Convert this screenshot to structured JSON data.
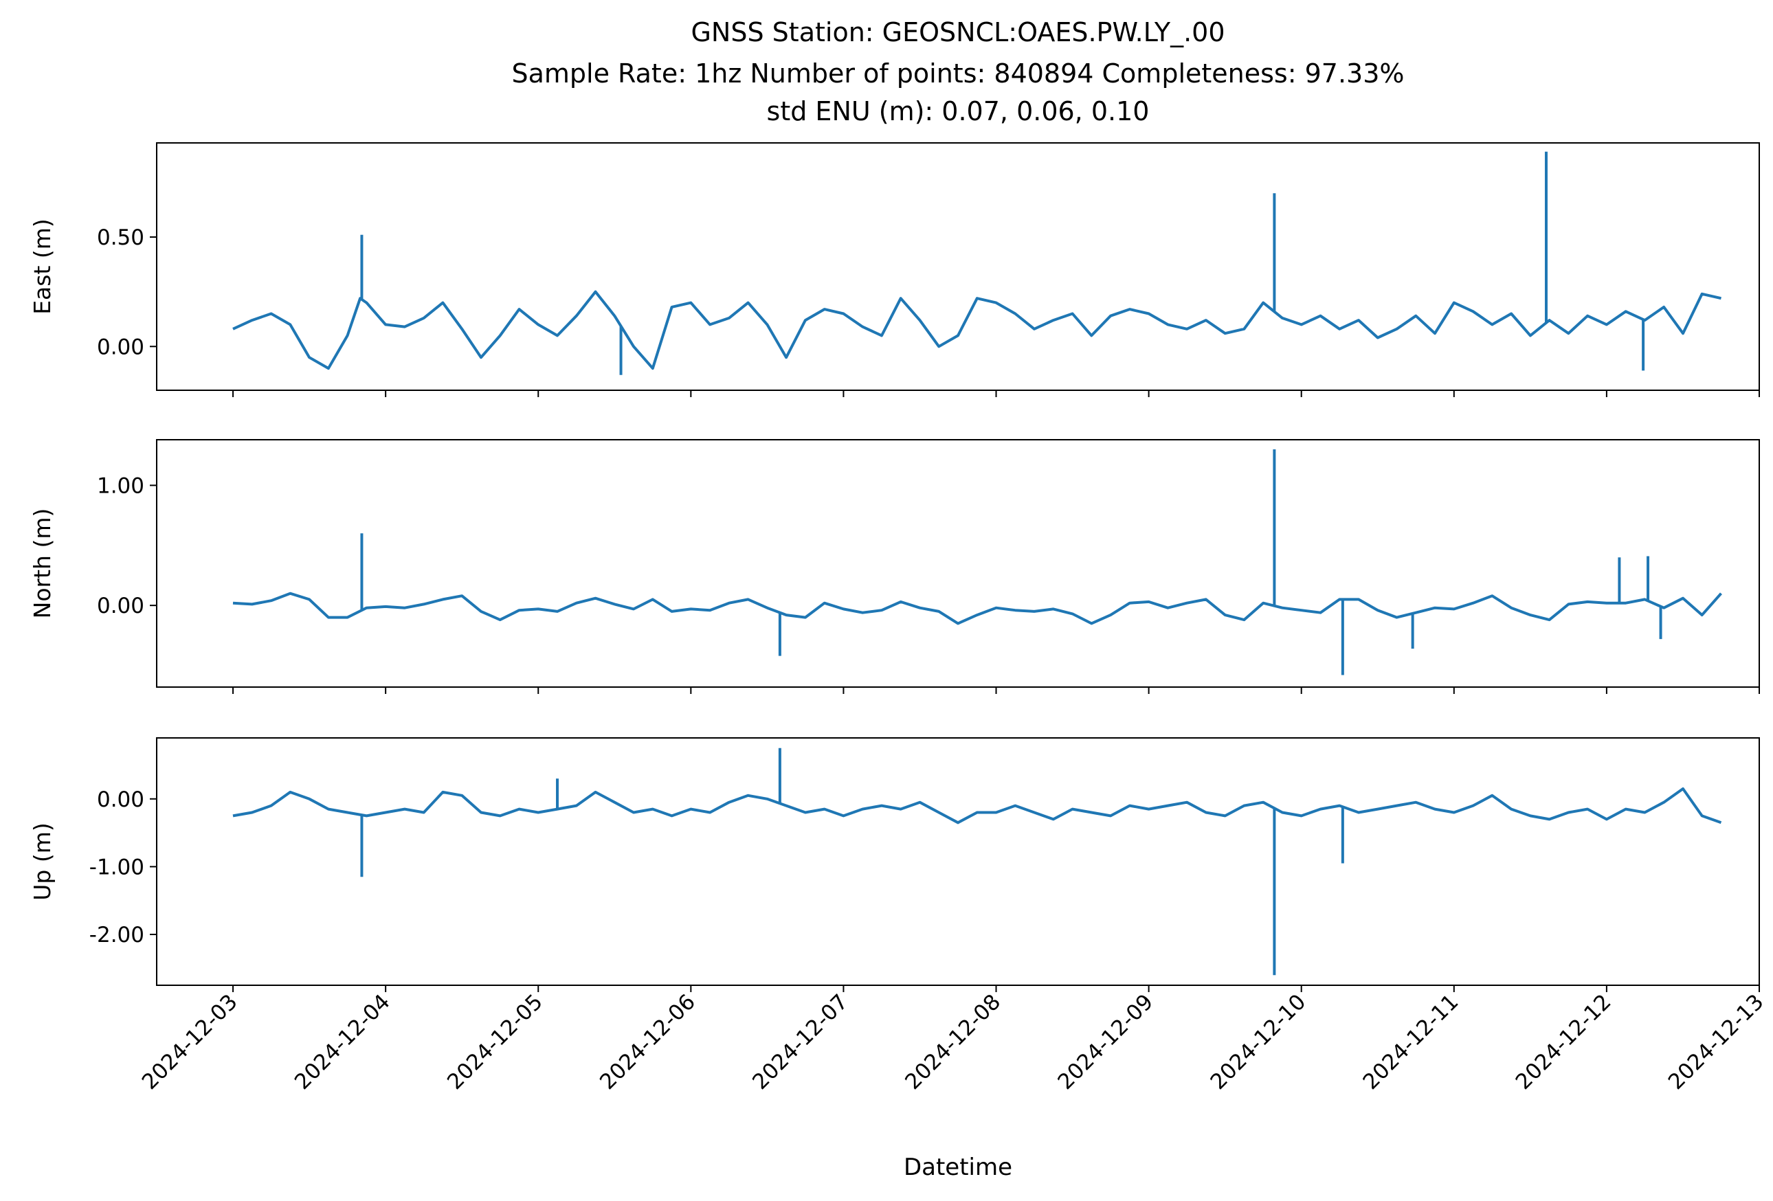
{
  "figure": {
    "title_lines": [
      "GNSS Station: GEOSNCL:OAES.PW.LY_.00",
      "Sample Rate: 1hz   Number of points: 840894    Completeness:  97.33%",
      "std ENU (m):  0.07, 0.06, 0.10"
    ],
    "xlabel": "Datetime",
    "line_color": "#1f77b4"
  },
  "chart_data": [
    {
      "type": "line",
      "ylabel": "East (m)",
      "ylim": [
        -0.2,
        0.93
      ],
      "yticks": [
        0.0,
        0.5
      ],
      "ytick_labels": [
        "0.00",
        "0.50"
      ],
      "xlim": [
        "2024-12-02T12:00",
        "2024-12-13T00:00"
      ],
      "grid": false,
      "series": [
        {
          "x": [
            "2024-12-03T00:00",
            "2024-12-03T03:00",
            "2024-12-03T06:00",
            "2024-12-03T09:00",
            "2024-12-03T12:00",
            "2024-12-03T15:00",
            "2024-12-03T18:00",
            "2024-12-03T20:00",
            "2024-12-03T21:00",
            "2024-12-04T00:00",
            "2024-12-04T03:00",
            "2024-12-04T06:00",
            "2024-12-04T09:00",
            "2024-12-04T12:00",
            "2024-12-04T15:00",
            "2024-12-04T18:00",
            "2024-12-04T21:00",
            "2024-12-05T00:00",
            "2024-12-05T03:00",
            "2024-12-05T06:00",
            "2024-12-05T09:00",
            "2024-12-05T12:00",
            "2024-12-05T15:00",
            "2024-12-05T18:00",
            "2024-12-05T21:00",
            "2024-12-06T00:00",
            "2024-12-06T03:00",
            "2024-12-06T06:00",
            "2024-12-06T09:00",
            "2024-12-06T12:00",
            "2024-12-06T15:00",
            "2024-12-06T18:00",
            "2024-12-06T21:00",
            "2024-12-07T00:00",
            "2024-12-07T03:00",
            "2024-12-07T06:00",
            "2024-12-07T09:00",
            "2024-12-07T12:00",
            "2024-12-07T15:00",
            "2024-12-07T18:00",
            "2024-12-07T21:00",
            "2024-12-08T00:00",
            "2024-12-08T03:00",
            "2024-12-08T06:00",
            "2024-12-08T09:00",
            "2024-12-08T12:00",
            "2024-12-08T15:00",
            "2024-12-08T18:00",
            "2024-12-08T21:00",
            "2024-12-09T00:00",
            "2024-12-09T03:00",
            "2024-12-09T06:00",
            "2024-12-09T09:00",
            "2024-12-09T12:00",
            "2024-12-09T15:00",
            "2024-12-09T18:00",
            "2024-12-09T21:00",
            "2024-12-10T00:00",
            "2024-12-10T03:00",
            "2024-12-10T06:00",
            "2024-12-10T09:00",
            "2024-12-10T12:00",
            "2024-12-10T15:00",
            "2024-12-10T18:00",
            "2024-12-10T21:00",
            "2024-12-11T00:00",
            "2024-12-11T03:00",
            "2024-12-11T06:00",
            "2024-12-11T09:00",
            "2024-12-11T12:00",
            "2024-12-11T15:00",
            "2024-12-11T18:00",
            "2024-12-11T21:00",
            "2024-12-12T00:00",
            "2024-12-12T03:00",
            "2024-12-12T06:00",
            "2024-12-12T09:00",
            "2024-12-12T12:00",
            "2024-12-12T15:00",
            "2024-12-12T18:00"
          ],
          "y": [
            0.08,
            0.12,
            0.15,
            0.1,
            -0.05,
            -0.1,
            0.05,
            0.22,
            0.2,
            0.1,
            0.09,
            0.13,
            0.2,
            0.08,
            -0.05,
            0.05,
            0.17,
            0.1,
            0.05,
            0.14,
            0.25,
            0.14,
            0.0,
            -0.1,
            0.18,
            0.2,
            0.1,
            0.13,
            0.2,
            0.1,
            -0.05,
            0.12,
            0.17,
            0.15,
            0.09,
            0.05,
            0.22,
            0.12,
            0.0,
            0.05,
            0.22,
            0.2,
            0.15,
            0.08,
            0.12,
            0.15,
            0.05,
            0.14,
            0.17,
            0.15,
            0.1,
            0.08,
            0.12,
            0.06,
            0.08,
            0.2,
            0.13,
            0.1,
            0.14,
            0.08,
            0.12,
            0.04,
            0.08,
            0.14,
            0.06,
            0.2,
            0.16,
            0.1,
            0.15,
            0.05,
            0.12,
            0.06,
            0.14,
            0.1,
            0.16,
            0.12,
            0.18,
            0.06,
            0.24,
            0.22
          ]
        }
      ],
      "spikes": [
        {
          "x": "2024-12-03T20:15",
          "y": 0.51
        },
        {
          "x": "2024-12-09T19:45",
          "y": 0.7
        },
        {
          "x": "2024-12-11T14:30",
          "y": 0.89
        },
        {
          "x": "2024-12-05T13:00",
          "y": -0.13
        },
        {
          "x": "2024-12-12T05:45",
          "y": -0.11
        }
      ]
    },
    {
      "type": "line",
      "ylabel": "North (m)",
      "ylim": [
        -0.68,
        1.38
      ],
      "yticks": [
        0.0,
        1.0
      ],
      "ytick_labels": [
        "0.00",
        "1.00"
      ],
      "xlim": [
        "2024-12-02T12:00",
        "2024-12-13T00:00"
      ],
      "grid": false,
      "series": [
        {
          "x": [
            "2024-12-03T00:00",
            "2024-12-03T03:00",
            "2024-12-03T06:00",
            "2024-12-03T09:00",
            "2024-12-03T12:00",
            "2024-12-03T15:00",
            "2024-12-03T18:00",
            "2024-12-03T21:00",
            "2024-12-04T00:00",
            "2024-12-04T03:00",
            "2024-12-04T06:00",
            "2024-12-04T09:00",
            "2024-12-04T12:00",
            "2024-12-04T15:00",
            "2024-12-04T18:00",
            "2024-12-04T21:00",
            "2024-12-05T00:00",
            "2024-12-05T03:00",
            "2024-12-05T06:00",
            "2024-12-05T09:00",
            "2024-12-05T12:00",
            "2024-12-05T15:00",
            "2024-12-05T18:00",
            "2024-12-05T21:00",
            "2024-12-06T00:00",
            "2024-12-06T03:00",
            "2024-12-06T06:00",
            "2024-12-06T09:00",
            "2024-12-06T12:00",
            "2024-12-06T15:00",
            "2024-12-06T18:00",
            "2024-12-06T21:00",
            "2024-12-07T00:00",
            "2024-12-07T03:00",
            "2024-12-07T06:00",
            "2024-12-07T09:00",
            "2024-12-07T12:00",
            "2024-12-07T15:00",
            "2024-12-07T18:00",
            "2024-12-07T21:00",
            "2024-12-08T00:00",
            "2024-12-08T03:00",
            "2024-12-08T06:00",
            "2024-12-08T09:00",
            "2024-12-08T12:00",
            "2024-12-08T15:00",
            "2024-12-08T18:00",
            "2024-12-08T21:00",
            "2024-12-09T00:00",
            "2024-12-09T03:00",
            "2024-12-09T06:00",
            "2024-12-09T09:00",
            "2024-12-09T12:00",
            "2024-12-09T15:00",
            "2024-12-09T18:00",
            "2024-12-09T21:00",
            "2024-12-10T00:00",
            "2024-12-10T03:00",
            "2024-12-10T06:00",
            "2024-12-10T09:00",
            "2024-12-10T12:00",
            "2024-12-10T15:00",
            "2024-12-10T18:00",
            "2024-12-10T21:00",
            "2024-12-11T00:00",
            "2024-12-11T03:00",
            "2024-12-11T06:00",
            "2024-12-11T09:00",
            "2024-12-11T12:00",
            "2024-12-11T15:00",
            "2024-12-11T18:00",
            "2024-12-11T21:00",
            "2024-12-12T00:00",
            "2024-12-12T03:00",
            "2024-12-12T06:00",
            "2024-12-12T09:00",
            "2024-12-12T12:00",
            "2024-12-12T15:00",
            "2024-12-12T18:00"
          ],
          "y": [
            0.02,
            0.01,
            0.04,
            0.1,
            0.05,
            -0.1,
            -0.1,
            -0.02,
            -0.01,
            -0.02,
            0.01,
            0.05,
            0.08,
            -0.05,
            -0.12,
            -0.04,
            -0.03,
            -0.05,
            0.02,
            0.06,
            0.01,
            -0.03,
            0.05,
            -0.05,
            -0.03,
            -0.04,
            0.02,
            0.05,
            -0.02,
            -0.08,
            -0.1,
            0.02,
            -0.03,
            -0.06,
            -0.04,
            0.03,
            -0.02,
            -0.05,
            -0.15,
            -0.08,
            -0.02,
            -0.04,
            -0.05,
            -0.03,
            -0.07,
            -0.15,
            -0.08,
            0.02,
            0.03,
            -0.02,
            0.02,
            0.05,
            -0.08,
            -0.12,
            0.02,
            -0.02,
            -0.04,
            -0.06,
            0.05,
            0.05,
            -0.04,
            -0.1,
            -0.06,
            -0.02,
            -0.03,
            0.02,
            0.08,
            -0.02,
            -0.08,
            -0.12,
            0.01,
            0.03,
            0.02,
            0.02,
            0.05,
            -0.02,
            0.06,
            -0.08,
            0.1
          ]
        }
      ],
      "spikes": [
        {
          "x": "2024-12-03T20:15",
          "y": 0.6
        },
        {
          "x": "2024-12-09T19:45",
          "y": 1.3
        },
        {
          "x": "2024-12-10T06:30",
          "y": -0.58
        },
        {
          "x": "2024-12-06T14:00",
          "y": -0.42
        },
        {
          "x": "2024-12-10T17:30",
          "y": -0.36
        },
        {
          "x": "2024-12-12T02:00",
          "y": 0.4
        },
        {
          "x": "2024-12-12T06:30",
          "y": 0.41
        },
        {
          "x": "2024-12-12T08:30",
          "y": -0.28
        }
      ]
    },
    {
      "type": "line",
      "ylabel": "Up (m)",
      "ylim": [
        -2.75,
        0.9
      ],
      "yticks": [
        0.0,
        -1.0,
        -2.0
      ],
      "ytick_labels": [
        "0.00",
        "-1.00",
        "-2.00"
      ],
      "xlim": [
        "2024-12-02T12:00",
        "2024-12-13T00:00"
      ],
      "grid": false,
      "series": [
        {
          "x": [
            "2024-12-03T00:00",
            "2024-12-03T03:00",
            "2024-12-03T06:00",
            "2024-12-03T09:00",
            "2024-12-03T12:00",
            "2024-12-03T15:00",
            "2024-12-03T18:00",
            "2024-12-03T21:00",
            "2024-12-04T00:00",
            "2024-12-04T03:00",
            "2024-12-04T06:00",
            "2024-12-04T09:00",
            "2024-12-04T12:00",
            "2024-12-04T15:00",
            "2024-12-04T18:00",
            "2024-12-04T21:00",
            "2024-12-05T00:00",
            "2024-12-05T03:00",
            "2024-12-05T06:00",
            "2024-12-05T09:00",
            "2024-12-05T12:00",
            "2024-12-05T15:00",
            "2024-12-05T18:00",
            "2024-12-05T21:00",
            "2024-12-06T00:00",
            "2024-12-06T03:00",
            "2024-12-06T06:00",
            "2024-12-06T09:00",
            "2024-12-06T12:00",
            "2024-12-06T15:00",
            "2024-12-06T18:00",
            "2024-12-06T21:00",
            "2024-12-07T00:00",
            "2024-12-07T03:00",
            "2024-12-07T06:00",
            "2024-12-07T09:00",
            "2024-12-07T12:00",
            "2024-12-07T15:00",
            "2024-12-07T18:00",
            "2024-12-07T21:00",
            "2024-12-08T00:00",
            "2024-12-08T03:00",
            "2024-12-08T06:00",
            "2024-12-08T09:00",
            "2024-12-08T12:00",
            "2024-12-08T15:00",
            "2024-12-08T18:00",
            "2024-12-08T21:00",
            "2024-12-09T00:00",
            "2024-12-09T03:00",
            "2024-12-09T06:00",
            "2024-12-09T09:00",
            "2024-12-09T12:00",
            "2024-12-09T15:00",
            "2024-12-09T18:00",
            "2024-12-09T21:00",
            "2024-12-10T00:00",
            "2024-12-10T03:00",
            "2024-12-10T06:00",
            "2024-12-10T09:00",
            "2024-12-10T12:00",
            "2024-12-10T15:00",
            "2024-12-10T18:00",
            "2024-12-10T21:00",
            "2024-12-11T00:00",
            "2024-12-11T03:00",
            "2024-12-11T06:00",
            "2024-12-11T09:00",
            "2024-12-11T12:00",
            "2024-12-11T15:00",
            "2024-12-11T18:00",
            "2024-12-11T21:00",
            "2024-12-12T00:00",
            "2024-12-12T03:00",
            "2024-12-12T06:00",
            "2024-12-12T09:00",
            "2024-12-12T12:00",
            "2024-12-12T15:00",
            "2024-12-12T18:00"
          ],
          "y": [
            -0.25,
            -0.2,
            -0.1,
            0.1,
            0.0,
            -0.15,
            -0.2,
            -0.25,
            -0.2,
            -0.15,
            -0.2,
            0.1,
            0.05,
            -0.2,
            -0.25,
            -0.15,
            -0.2,
            -0.15,
            -0.1,
            0.1,
            -0.05,
            -0.2,
            -0.15,
            -0.25,
            -0.15,
            -0.2,
            -0.05,
            0.05,
            0.0,
            -0.1,
            -0.2,
            -0.15,
            -0.25,
            -0.15,
            -0.1,
            -0.15,
            -0.05,
            -0.2,
            -0.35,
            -0.2,
            -0.2,
            -0.1,
            -0.2,
            -0.3,
            -0.15,
            -0.2,
            -0.25,
            -0.1,
            -0.15,
            -0.1,
            -0.05,
            -0.2,
            -0.25,
            -0.1,
            -0.05,
            -0.2,
            -0.25,
            -0.15,
            -0.1,
            -0.2,
            -0.15,
            -0.1,
            -0.05,
            -0.15,
            -0.2,
            -0.1,
            0.05,
            -0.15,
            -0.25,
            -0.3,
            -0.2,
            -0.15,
            -0.3,
            -0.15,
            -0.2,
            -0.05,
            0.15,
            -0.25,
            -0.35
          ]
        }
      ],
      "spikes": [
        {
          "x": "2024-12-03T20:15",
          "y": -1.15
        },
        {
          "x": "2024-12-06T14:00",
          "y": 0.75
        },
        {
          "x": "2024-12-09T19:45",
          "y": -2.6
        },
        {
          "x": "2024-12-10T06:30",
          "y": -0.95
        },
        {
          "x": "2024-12-05T03:00",
          "y": 0.3
        }
      ]
    }
  ],
  "x_axis": {
    "tick_labels": [
      "2024-12-03",
      "2024-12-04",
      "2024-12-05",
      "2024-12-06",
      "2024-12-07",
      "2024-12-08",
      "2024-12-09",
      "2024-12-10",
      "2024-12-11",
      "2024-12-12",
      "2024-12-13"
    ]
  }
}
